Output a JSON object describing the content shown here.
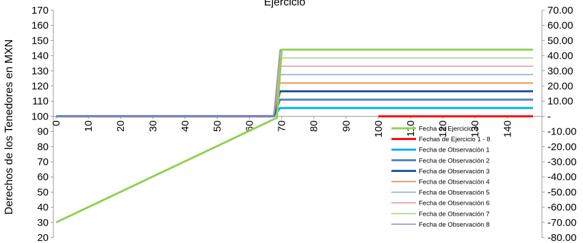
{
  "chart_data": {
    "type": "line",
    "title": "Ejercicio",
    "ylabel": "Derechos de los Tenedores en MXN",
    "y_left": {
      "range": [
        20,
        170
      ],
      "ticks": [
        20,
        30,
        40,
        50,
        60,
        70,
        80,
        90,
        100,
        110,
        120,
        130,
        140,
        150,
        160,
        170
      ]
    },
    "y_right": {
      "range": [
        -80,
        70
      ],
      "ticks": [
        -80,
        -70,
        -60,
        -50,
        -40,
        -30,
        -20,
        -10,
        0,
        10,
        20,
        30,
        40,
        50,
        60,
        70
      ],
      "tick_labels": [
        "-80.00",
        "-70.00",
        "-60.00",
        "-50.00",
        "-40.00",
        "-30.00",
        "-20.00",
        "-10.00",
        "-",
        "10.00",
        "20.00",
        "30.00",
        "40.00",
        "50.00",
        "60.00",
        "70.00"
      ]
    },
    "x": {
      "range": [
        0,
        148
      ],
      "ticks": [
        0,
        10,
        20,
        30,
        40,
        50,
        60,
        70,
        80,
        90,
        100,
        110,
        120,
        130,
        140
      ]
    },
    "grid": false,
    "legend": "bottom-right",
    "series": [
      {
        "name": "Fecha de Ejercicio 9",
        "color": "#92d050",
        "width": 3,
        "points": [
          [
            0,
            30
          ],
          [
            67.5,
            98
          ],
          [
            68.5,
            99
          ],
          [
            70,
            144
          ],
          [
            148,
            144
          ]
        ]
      },
      {
        "name": "Fechas de Ejercicio 1 - 8",
        "color": "#ff0000",
        "width": 3,
        "points": [
          [
            100,
            100
          ],
          [
            148,
            100
          ]
        ]
      },
      {
        "name": "Fecha de Observación 1",
        "color": "#00b0f0",
        "width": 3,
        "points": [
          [
            0,
            100
          ],
          [
            67.5,
            100
          ],
          [
            69.5,
            105.5
          ],
          [
            148,
            105.5
          ]
        ]
      },
      {
        "name": "Fecha de Observación 2",
        "color": "#4f81bd",
        "width": 3,
        "points": [
          [
            0,
            100
          ],
          [
            67.5,
            100
          ],
          [
            69.5,
            111
          ],
          [
            148,
            111
          ]
        ]
      },
      {
        "name": "Fecha de Observación 3",
        "color": "#1f4e9c",
        "width": 3,
        "points": [
          [
            0,
            100
          ],
          [
            67.5,
            100
          ],
          [
            69.5,
            116.5
          ],
          [
            148,
            116.5
          ]
        ]
      },
      {
        "name": "Fecha de Observación 4",
        "color": "#e07b39",
        "width": 1.6,
        "points": [
          [
            0,
            100
          ],
          [
            67.5,
            100
          ],
          [
            69.5,
            122
          ],
          [
            148,
            122
          ]
        ]
      },
      {
        "name": "Fecha de Observación 5",
        "color": "#8ea9db",
        "width": 1.6,
        "points": [
          [
            0,
            100
          ],
          [
            67.5,
            100
          ],
          [
            69.5,
            127.5
          ],
          [
            148,
            127.5
          ]
        ]
      },
      {
        "name": "Fecha de Observación 6",
        "color": "#e6999d",
        "width": 1.6,
        "points": [
          [
            0,
            100
          ],
          [
            67.5,
            100
          ],
          [
            69.5,
            133
          ],
          [
            148,
            133
          ]
        ]
      },
      {
        "name": "Fecha de Observación 7",
        "color": "#a9d18e",
        "width": 1.6,
        "points": [
          [
            0,
            100
          ],
          [
            67.5,
            100
          ],
          [
            69.5,
            138.5
          ],
          [
            148,
            138.5
          ]
        ]
      },
      {
        "name": "Fecha de Observación 8",
        "color": "#9e88b8",
        "width": 1.6,
        "points": [
          [
            0,
            100
          ],
          [
            67.5,
            100
          ],
          [
            69.5,
            144
          ],
          [
            148,
            144
          ]
        ]
      }
    ]
  }
}
